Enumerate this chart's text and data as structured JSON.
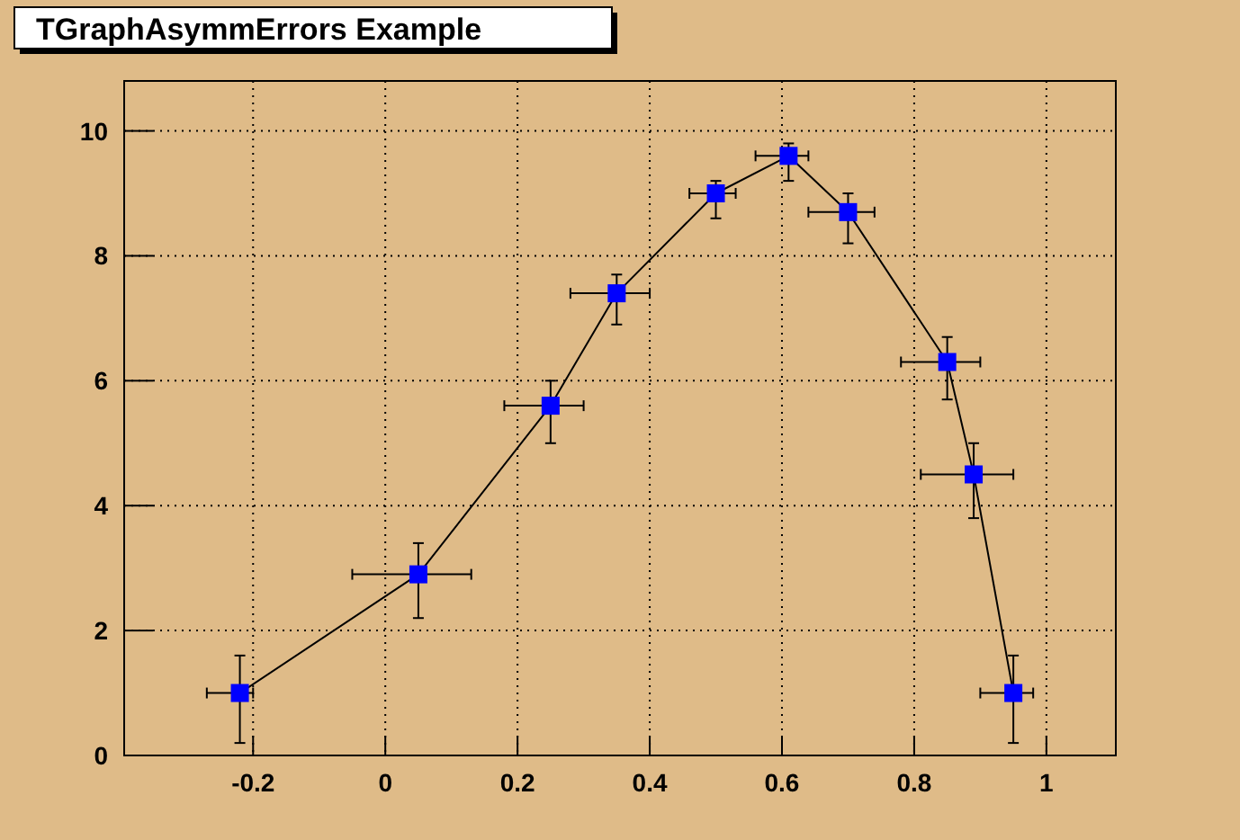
{
  "chart_data": {
    "type": "line",
    "title": "TGraphAsymmErrors Example",
    "x": [
      -0.22,
      0.05,
      0.25,
      0.35,
      0.5,
      0.61,
      0.7,
      0.85,
      0.89,
      0.95
    ],
    "series": [
      {
        "color": "#0000ff",
        "values": [
          1,
          2.9,
          5.6,
          7.4,
          9,
          9.6,
          8.7,
          6.3,
          4.5,
          1
        ],
        "errors": [
          [
            0.2,
            1.6
          ],
          [
            2.2,
            3.4
          ],
          [
            5.0,
            6.0
          ],
          [
            6.9,
            7.7
          ],
          [
            8.6,
            9.2
          ],
          [
            9.2,
            9.8
          ],
          [
            8.2,
            9.0
          ],
          [
            5.7,
            6.7
          ],
          [
            3.8,
            5.0
          ],
          [
            0.2,
            1.6
          ]
        ],
        "xerrors": [
          [
            -0.27,
            -0.2
          ],
          [
            -0.05,
            0.13
          ],
          [
            0.18,
            0.3
          ],
          [
            0.28,
            0.4
          ],
          [
            0.46,
            0.53
          ],
          [
            0.56,
            0.64
          ],
          [
            0.64,
            0.74
          ],
          [
            0.78,
            0.9
          ],
          [
            0.81,
            0.95
          ],
          [
            0.9,
            0.98
          ]
        ]
      }
    ],
    "xlim": [
      -0.395,
      1.105
    ],
    "xticks": [
      -0.2,
      0,
      0.2,
      0.4,
      0.6,
      0.8,
      1
    ],
    "ylim": [
      0,
      10.8
    ],
    "yticks": [
      0,
      2,
      4,
      6,
      8,
      10
    ],
    "grid": true,
    "marker": "square",
    "line_style": "solid"
  }
}
